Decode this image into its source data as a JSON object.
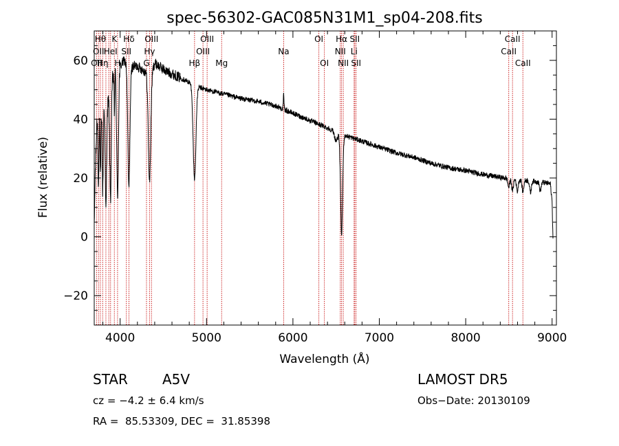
{
  "chart_data": {
    "type": "line",
    "title": "spec-56302-GAC085N31M1_sp04-208.fits",
    "xlabel": "Wavelength (Å)",
    "ylabel": "Flux (relative)",
    "xlim": [
      3700,
      9050
    ],
    "ylim": [
      -30,
      70
    ],
    "xticks": [
      4000,
      5000,
      6000,
      7000,
      8000,
      9000
    ],
    "yticks": [
      -20,
      0,
      20,
      40,
      60
    ],
    "xtick_labels": [
      "4000",
      "5000",
      "6000",
      "7000",
      "8000",
      "9000"
    ],
    "ytick_labels": [
      "−20",
      "0",
      "20",
      "40",
      "60"
    ],
    "line_color": "#000000",
    "marker_color": "#cc2222",
    "continuum": [
      [
        3700,
        2
      ],
      [
        3710,
        20
      ],
      [
        3730,
        38
      ],
      [
        3760,
        50
      ],
      [
        3800,
        48
      ],
      [
        3850,
        44
      ],
      [
        3900,
        54
      ],
      [
        3950,
        57
      ],
      [
        4000,
        58
      ],
      [
        4050,
        60
      ],
      [
        4100,
        57
      ],
      [
        4150,
        58
      ],
      [
        4200,
        58
      ],
      [
        4250,
        57
      ],
      [
        4300,
        56
      ],
      [
        4350,
        55
      ],
      [
        4400,
        59
      ],
      [
        4450,
        58
      ],
      [
        4500,
        57
      ],
      [
        4550,
        56
      ],
      [
        4600,
        55.5
      ],
      [
        4700,
        54
      ],
      [
        4800,
        52.5
      ],
      [
        4900,
        51
      ],
      [
        5000,
        50
      ],
      [
        5200,
        48.5
      ],
      [
        5400,
        47
      ],
      [
        5600,
        46
      ],
      [
        5800,
        44.5
      ],
      [
        6000,
        42
      ],
      [
        6200,
        39.5
      ],
      [
        6400,
        37
      ],
      [
        6600,
        34.5
      ],
      [
        6800,
        32.5
      ],
      [
        7000,
        30.5
      ],
      [
        7200,
        28.5
      ],
      [
        7400,
        27
      ],
      [
        7600,
        25
      ],
      [
        7800,
        23.5
      ],
      [
        8000,
        22.5
      ],
      [
        8200,
        21.2
      ],
      [
        8400,
        20.2
      ],
      [
        8500,
        19.8
      ],
      [
        8700,
        19.2
      ],
      [
        8900,
        18.5
      ],
      [
        8980,
        18
      ],
      [
        9000,
        12
      ],
      [
        9010,
        0
      ]
    ],
    "absorptions": [
      {
        "center": 3750,
        "width": 6,
        "depth": 28
      },
      {
        "center": 3771,
        "width": 6,
        "depth": 30
      },
      {
        "center": 3798,
        "width": 7,
        "depth": 32
      },
      {
        "center": 3835,
        "width": 8,
        "depth": 36
      },
      {
        "center": 3889,
        "width": 9,
        "depth": 38
      },
      {
        "center": 3933,
        "width": 4,
        "depth": 14
      },
      {
        "center": 3970,
        "width": 10,
        "depth": 44
      },
      {
        "center": 4101,
        "width": 12,
        "depth": 40
      },
      {
        "center": 4340,
        "width": 14,
        "depth": 36
      },
      {
        "center": 4861,
        "width": 16,
        "depth": 32
      },
      {
        "center": 6563,
        "width": 12,
        "depth": 34
      },
      {
        "center": 6500,
        "width": 18,
        "depth": 3
      },
      {
        "center": 8498,
        "width": 10,
        "depth": 3
      },
      {
        "center": 8542,
        "width": 10,
        "depth": 4
      },
      {
        "center": 8598,
        "width": 10,
        "depth": 4
      },
      {
        "center": 8662,
        "width": 10,
        "depth": 4
      },
      {
        "center": 8750,
        "width": 10,
        "depth": 4
      },
      {
        "center": 8863,
        "width": 10,
        "depth": 3
      }
    ],
    "emissions": [
      {
        "center": 5893,
        "width": 4,
        "height": 5
      }
    ],
    "line_markers": [
      {
        "wave": 3727,
        "label": "OII",
        "row": 2
      },
      {
        "wave": 3750,
        "label": "OII",
        "row": 1
      },
      {
        "wave": 3771,
        "label": "Hθ",
        "row": 0
      },
      {
        "wave": 3798,
        "label": "Hη",
        "row": 2
      },
      {
        "wave": 3835,
        "label": "",
        "row": 0
      },
      {
        "wave": 3869,
        "label": "",
        "row": 0
      },
      {
        "wave": 3889,
        "label": "HeI",
        "row": 1
      },
      {
        "wave": 3933,
        "label": "K",
        "row": 0
      },
      {
        "wave": 3970,
        "label": "H",
        "row": 2
      },
      {
        "wave": 4072,
        "label": "SII",
        "row": 1
      },
      {
        "wave": 4102,
        "label": "Hδ",
        "row": 0
      },
      {
        "wave": 4305,
        "label": "G",
        "row": 2
      },
      {
        "wave": 4340,
        "label": "Hγ",
        "row": 1
      },
      {
        "wave": 4363,
        "label": "OIII",
        "row": 0
      },
      {
        "wave": 4861,
        "label": "Hβ",
        "row": 2
      },
      {
        "wave": 4959,
        "label": "OIII",
        "row": 1
      },
      {
        "wave": 5007,
        "label": "OIII",
        "row": 0
      },
      {
        "wave": 5175,
        "label": "Mg",
        "row": 2
      },
      {
        "wave": 5893,
        "label": "Na",
        "row": 1
      },
      {
        "wave": 6300,
        "label": "OI",
        "row": 0
      },
      {
        "wave": 6364,
        "label": "OI",
        "row": 2
      },
      {
        "wave": 6548,
        "label": "NII",
        "row": 1
      },
      {
        "wave": 6563,
        "label": "Hα",
        "row": 0
      },
      {
        "wave": 6583,
        "label": "NII",
        "row": 2
      },
      {
        "wave": 6708,
        "label": "Li",
        "row": 1
      },
      {
        "wave": 6716,
        "label": "SII",
        "row": 0
      },
      {
        "wave": 6731,
        "label": "SII",
        "row": 2
      },
      {
        "wave": 8498,
        "label": "CaII",
        "row": 1
      },
      {
        "wave": 8542,
        "label": "CaII",
        "row": 0
      },
      {
        "wave": 8662,
        "label": "CaII",
        "row": 2
      }
    ]
  },
  "info": {
    "class_label": "STAR",
    "subclass": "A5V",
    "survey": "LAMOST DR5",
    "cz_text": "cz = −4.2 ± 6.4 km/s",
    "obs_date": "Obs−Date: 20130109",
    "radec": "RA =  85.53309, DEC =  31.85398"
  }
}
